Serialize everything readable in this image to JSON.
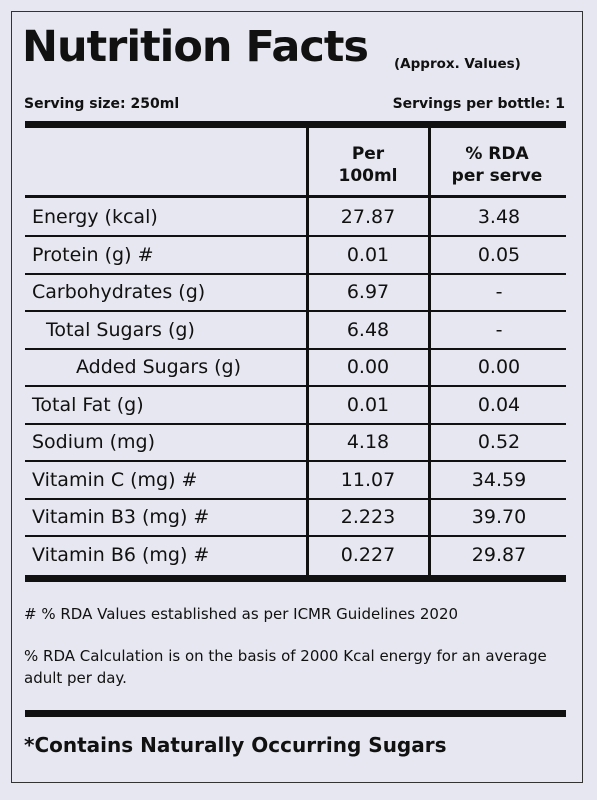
{
  "title": "Nutrition Facts",
  "subtitle": "(Approx. Values)",
  "serving_size": "Serving size: 250ml",
  "servings_per_bottle": "Servings per bottle: 1",
  "columns": {
    "per100_line1": "Per",
    "per100_line2": "100ml",
    "rda_line1": "% RDA",
    "rda_line2": "per serve"
  },
  "rows": [
    {
      "name": "Energy (kcal)",
      "per100": "27.87",
      "rda": "3.48",
      "indent": 0
    },
    {
      "name": "Protein (g) #",
      "per100": "0.01",
      "rda": "0.05",
      "indent": 0
    },
    {
      "name": "Carbohydrates (g)",
      "per100": "6.97",
      "rda": "-",
      "indent": 0
    },
    {
      "name": "Total Sugars (g)",
      "per100": "6.48",
      "rda": "-",
      "indent": 1
    },
    {
      "name": "Added Sugars (g)",
      "per100": "0.00",
      "rda": "0.00",
      "indent": 2
    },
    {
      "name": "Total Fat (g)",
      "per100": "0.01",
      "rda": "0.04",
      "indent": 0
    },
    {
      "name": "Sodium (mg)",
      "per100": "4.18",
      "rda": "0.52",
      "indent": 0
    },
    {
      "name": "Vitamin C (mg) #",
      "per100": "11.07",
      "rda": "34.59",
      "indent": 0
    },
    {
      "name": "Vitamin B3 (mg) #",
      "per100": "2.223",
      "rda": "39.70",
      "indent": 0
    },
    {
      "name": "Vitamin B6 (mg) #",
      "per100": "0.227",
      "rda": "29.87",
      "indent": 0
    }
  ],
  "notes": {
    "note1": "# % RDA Values established as per ICMR Guidelines 2020",
    "note2": "% RDA Calculation is on the basis of 2000 Kcal energy for an average adult per day."
  },
  "footer": "*Contains Naturally Occurring Sugars"
}
